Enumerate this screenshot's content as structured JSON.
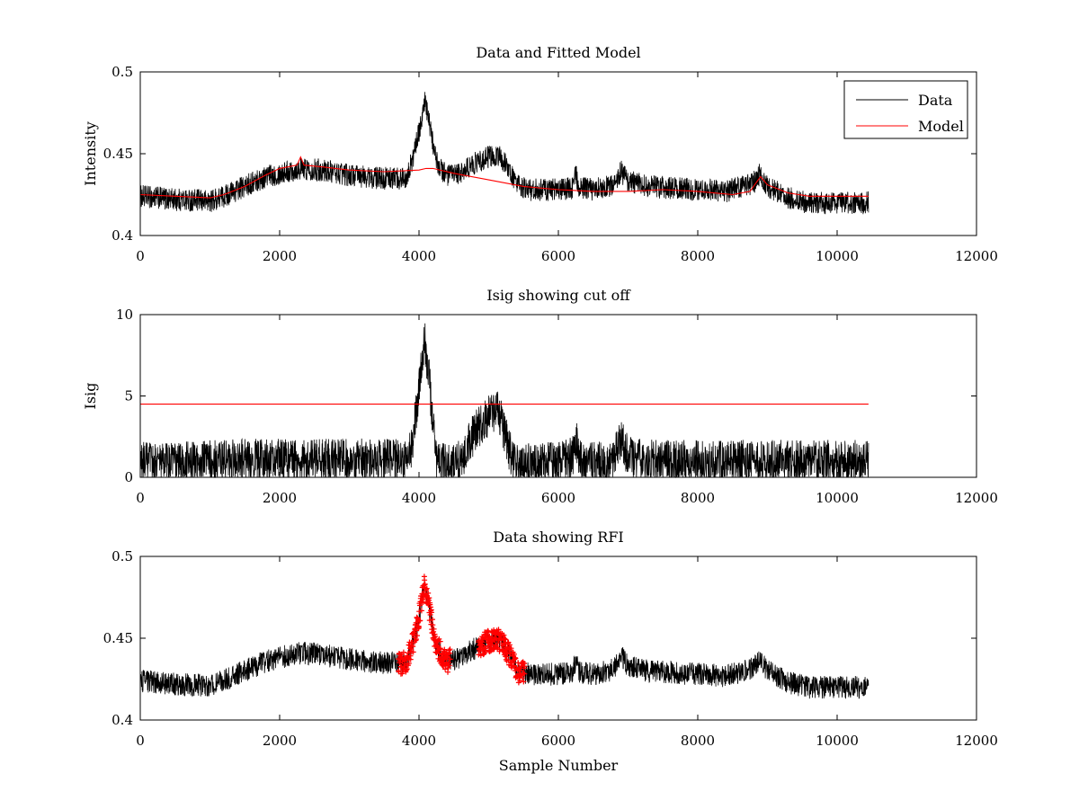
{
  "figure": {
    "background": "#ffffff",
    "data_color": "#000000",
    "model_color": "#ff0000",
    "rfi_color": "#ff0000"
  },
  "chart_data": [
    {
      "type": "line",
      "title": "Data and Fitted Model",
      "xlabel": "",
      "ylabel": "Intensity",
      "xlim": [
        0,
        12000
      ],
      "ylim": [
        0.4,
        0.5
      ],
      "xticks": [
        "0",
        "2000",
        "4000",
        "6000",
        "8000",
        "10000",
        "12000"
      ],
      "yticks": [
        "0.4",
        "0.45",
        "0.5"
      ],
      "legend": {
        "position": "top-right",
        "entries": [
          "Data",
          "Model"
        ]
      },
      "series": [
        {
          "name": "Data",
          "color": "#000000",
          "noise_amplitude": 0.007,
          "x": [
            0,
            500,
            1000,
            1200,
            1500,
            1800,
            2000,
            2300,
            2600,
            3000,
            3400,
            3800,
            3900,
            4000,
            4080,
            4150,
            4250,
            4400,
            4600,
            4800,
            5000,
            5150,
            5300,
            5400,
            5600,
            6000,
            6200,
            6250,
            6300,
            6500,
            6800,
            6900,
            7000,
            7300,
            7600,
            8000,
            8400,
            8800,
            8880,
            9000,
            9300,
            9600,
            9800,
            10000,
            10450
          ],
          "y": [
            0.424,
            0.422,
            0.421,
            0.424,
            0.43,
            0.436,
            0.438,
            0.441,
            0.44,
            0.437,
            0.435,
            0.435,
            0.445,
            0.463,
            0.482,
            0.468,
            0.445,
            0.436,
            0.438,
            0.444,
            0.448,
            0.449,
            0.44,
            0.43,
            0.428,
            0.428,
            0.429,
            0.437,
            0.429,
            0.428,
            0.431,
            0.439,
            0.433,
            0.43,
            0.429,
            0.428,
            0.427,
            0.432,
            0.437,
            0.43,
            0.423,
            0.42,
            0.42,
            0.42,
            0.42
          ]
        },
        {
          "name": "Model",
          "color": "#ff0000",
          "x": [
            0,
            500,
            1000,
            1200,
            1500,
            1800,
            2000,
            2250,
            2300,
            2350,
            2600,
            3000,
            3500,
            4000,
            4100,
            4200,
            4500,
            5000,
            5500,
            6000,
            6500,
            7000,
            7500,
            8000,
            8500,
            8750,
            8850,
            8900,
            9000,
            9300,
            9600,
            9800,
            10000,
            10450
          ],
          "y": [
            0.425,
            0.424,
            0.423,
            0.425,
            0.43,
            0.437,
            0.441,
            0.443,
            0.448,
            0.443,
            0.442,
            0.44,
            0.439,
            0.44,
            0.441,
            0.441,
            0.438,
            0.434,
            0.43,
            0.428,
            0.427,
            0.427,
            0.428,
            0.427,
            0.425,
            0.427,
            0.433,
            0.436,
            0.431,
            0.426,
            0.424,
            0.424,
            0.424,
            0.424
          ]
        }
      ]
    },
    {
      "type": "line",
      "title": "Isig showing cut off",
      "xlabel": "",
      "ylabel": "Isig",
      "xlim": [
        0,
        12000
      ],
      "ylim": [
        0,
        10
      ],
      "xticks": [
        "0",
        "2000",
        "4000",
        "6000",
        "8000",
        "10000",
        "12000"
      ],
      "yticks": [
        "0",
        "5",
        "10"
      ],
      "series": [
        {
          "color": "#000000",
          "noise_amplitude": 1.3,
          "x": [
            0,
            1000,
            2000,
            3000,
            3800,
            3900,
            4000,
            4080,
            4150,
            4250,
            4400,
            4600,
            4800,
            5000,
            5150,
            5300,
            5400,
            5600,
            6000,
            6200,
            6250,
            6300,
            6500,
            6800,
            6900,
            7000,
            7500,
            8000,
            9000,
            10000,
            10450
          ],
          "y": [
            0.9,
            1.0,
            1.1,
            1.1,
            1.1,
            2.0,
            5.5,
            8.5,
            5.8,
            1.0,
            0.7,
            1.0,
            2.8,
            3.8,
            4.0,
            1.6,
            0.8,
            0.8,
            0.9,
            1.2,
            2.5,
            1.0,
            0.9,
            1.1,
            2.5,
            1.2,
            1.0,
            1.0,
            1.0,
            1.0,
            1.0
          ]
        },
        {
          "name": "",
          "color": "#ff0000",
          "x": [
            0,
            10450
          ],
          "y": [
            4.5,
            4.5
          ]
        }
      ]
    },
    {
      "type": "scatter",
      "title": "Data showing RFI",
      "xlabel": "Sample Number",
      "ylabel": "",
      "xlim": [
        0,
        12000
      ],
      "ylim": [
        0.4,
        0.5
      ],
      "xticks": [
        "0",
        "2000",
        "4000",
        "6000",
        "8000",
        "10000",
        "12000"
      ],
      "yticks": [
        "0.4",
        "0.45",
        "0.5"
      ],
      "series": [
        {
          "color": "#000000",
          "noise_amplitude": 0.007,
          "x": [
            0,
            500,
            1000,
            1200,
            1500,
            1800,
            2000,
            2300,
            2600,
            3000,
            3400,
            3800,
            3900,
            4000,
            4080,
            4150,
            4250,
            4400,
            4600,
            4800,
            5000,
            5150,
            5300,
            5400,
            5600,
            6000,
            6200,
            6250,
            6300,
            6500,
            6800,
            6900,
            7000,
            7300,
            7600,
            8000,
            8400,
            8800,
            8880,
            9000,
            9300,
            9600,
            9800,
            10000,
            10450
          ],
          "y": [
            0.424,
            0.422,
            0.421,
            0.424,
            0.43,
            0.436,
            0.438,
            0.441,
            0.44,
            0.437,
            0.435,
            0.435,
            0.445,
            0.463,
            0.482,
            0.468,
            0.445,
            0.436,
            0.438,
            0.444,
            0.448,
            0.449,
            0.44,
            0.43,
            0.428,
            0.428,
            0.429,
            0.437,
            0.429,
            0.428,
            0.431,
            0.439,
            0.433,
            0.43,
            0.429,
            0.428,
            0.427,
            0.432,
            0.437,
            0.43,
            0.423,
            0.42,
            0.42,
            0.42,
            0.42
          ]
        },
        {
          "color": "#ff0000",
          "marker": "+",
          "flagged_ranges": [
            [
              3700,
              4450
            ],
            [
              4850,
              5520
            ]
          ]
        }
      ]
    }
  ]
}
